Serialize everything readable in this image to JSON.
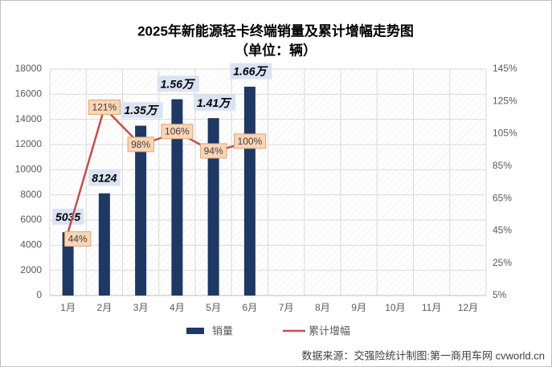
{
  "chart_data": {
    "type": "bar",
    "title": "2025年新能源轻卡终端销量及累计增幅走势图",
    "subtitle": "（单位：辆）",
    "source": "数据来源：交强险统计制图:第一商用车网 cvworld.cn",
    "categories": [
      "1月",
      "2月",
      "3月",
      "4月",
      "5月",
      "6月",
      "7月",
      "8月",
      "9月",
      "10月",
      "11月",
      "12月"
    ],
    "series": [
      {
        "name": "销量",
        "type": "bar",
        "color": "#1f3864",
        "values": [
          5035,
          8124,
          13500,
          15600,
          14100,
          16600,
          null,
          null,
          null,
          null,
          null,
          null
        ],
        "value_labels": [
          "5035",
          "8124",
          "1.35万",
          "1.56万",
          "1.41万",
          "1.66万",
          null,
          null,
          null,
          null,
          null,
          null
        ]
      },
      {
        "name": "累计增幅",
        "type": "line",
        "axis": "y2",
        "color": "#c0504d",
        "values": [
          44,
          121,
          98,
          106,
          94,
          100,
          null,
          null,
          null,
          null,
          null,
          null
        ],
        "value_labels": [
          "44%",
          "121%",
          "98%",
          "106%",
          "94%",
          "100%",
          null,
          null,
          null,
          null,
          null,
          null
        ]
      }
    ],
    "ylim": [
      0,
      18000
    ],
    "yticks": [
      0,
      2000,
      4000,
      6000,
      8000,
      10000,
      12000,
      14000,
      16000,
      18000
    ],
    "y2lim": [
      5,
      145
    ],
    "y2ticks": [
      {
        "value": 5,
        "label": "5%"
      },
      {
        "value": 25,
        "label": "25%"
      },
      {
        "value": 45,
        "label": "45%"
      },
      {
        "value": 65,
        "label": "65%"
      },
      {
        "value": 85,
        "label": "85%"
      },
      {
        "value": 105,
        "label": "105%"
      },
      {
        "value": 125,
        "label": "125%"
      },
      {
        "value": 145,
        "label": "145%"
      }
    ],
    "grid": true
  }
}
